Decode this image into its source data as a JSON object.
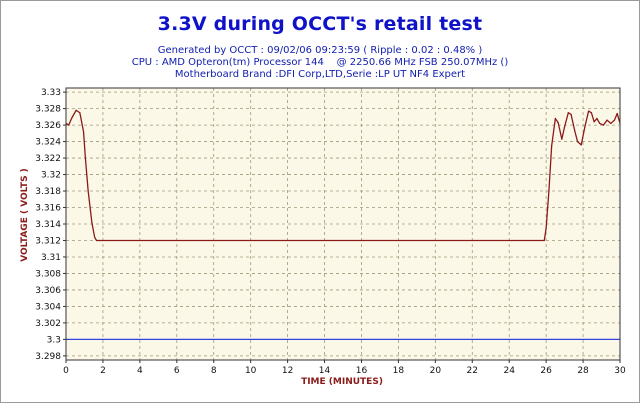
{
  "chart_data": {
    "type": "line",
    "title": "3.3V during OCCT's retail test",
    "subtitle_lines": [
      "Generated by OCCT : 09/02/06 09:23:59 ( Ripple : 0.02 : 0.48% )",
      "CPU : AMD Opteron(tm) Processor 144    @ 2250.66 MHz FSB 250.07MHz ()",
      "Motherboard Brand :DFI Corp,LTD,Serie :LP UT NF4 Expert"
    ],
    "xlabel": "TIME (MINUTES)",
    "ylabel": "VOLTAGE ( VOLTS )",
    "xlim": [
      0,
      30
    ],
    "ylim": [
      3.2975,
      3.3305
    ],
    "x_ticks": [
      0,
      2,
      4,
      6,
      8,
      10,
      12,
      14,
      16,
      18,
      20,
      22,
      24,
      26,
      28,
      30
    ],
    "y_ticks": [
      "3.33",
      "3.328",
      "3.326",
      "3.324",
      "3.322",
      "3.32",
      "3.318",
      "3.316",
      "3.314",
      "3.312",
      "3.31",
      "3.308",
      "3.306",
      "3.304",
      "3.302",
      "3.3",
      "3.298"
    ],
    "grid": true,
    "series": [
      {
        "color": "#8b1a1a",
        "x": [
          0,
          0.15,
          0.3,
          0.55,
          0.75,
          0.95,
          1.05,
          1.2,
          1.4,
          1.55,
          1.65,
          1.8,
          25.9,
          26.0,
          26.15,
          26.3,
          26.5,
          26.65,
          26.85,
          27.0,
          27.2,
          27.35,
          27.55,
          27.7,
          27.9,
          28.1,
          28.3,
          28.45,
          28.6,
          28.75,
          28.9,
          29.1,
          29.3,
          29.5,
          29.7,
          29.85,
          30
        ],
        "y": [
          3.3262,
          3.326,
          3.3268,
          3.3278,
          3.3275,
          3.3252,
          3.322,
          3.318,
          3.3142,
          3.3124,
          3.312,
          3.312,
          3.312,
          3.3135,
          3.318,
          3.3235,
          3.3268,
          3.3263,
          3.3243,
          3.3258,
          3.3275,
          3.3273,
          3.3253,
          3.324,
          3.3236,
          3.3258,
          3.3277,
          3.3275,
          3.3264,
          3.3268,
          3.3262,
          3.326,
          3.3266,
          3.3262,
          3.3266,
          3.3274,
          3.3262
        ]
      },
      {
        "color": "#3344dd",
        "x": [
          0,
          30
        ],
        "y": [
          3.3,
          3.3
        ]
      }
    ]
  },
  "colors": {
    "plot_background": "#fcf8e8",
    "grid": "#a09a7a",
    "title": "#0f12c8",
    "subtitle": "#1420b0",
    "axis_label": "#8b1a1a"
  }
}
